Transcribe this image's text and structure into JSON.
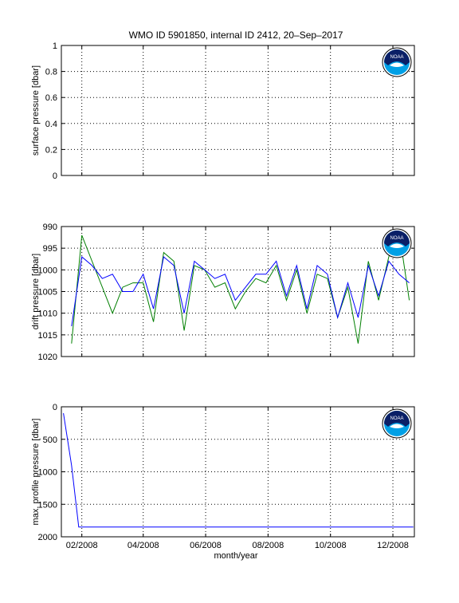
{
  "figure": {
    "title": "WMO ID 5901850, internal ID 2412, 20–Sep–2017",
    "xlabel": "month/year",
    "x_tick_labels": [
      "02/2008",
      "04/2008",
      "06/2008",
      "08/2008",
      "10/2008",
      "12/2008"
    ]
  },
  "logo": {
    "name": "noaa-logo",
    "text": "NOAA"
  },
  "colors": {
    "blue": "#0000ff",
    "green": "#007f00",
    "axes": "#000000"
  },
  "chart_data": [
    {
      "type": "line",
      "title": "WMO ID 5901850, internal ID 2412, 20–Sep–2017",
      "xlabel": "",
      "ylabel": "surface pressure [dbar]",
      "xlim": [
        "2008-01-12",
        "2008-12-22"
      ],
      "ylim": [
        0,
        1
      ],
      "y_reversed": false,
      "yticks": [
        0,
        0.2,
        0.4,
        0.6,
        0.8,
        1
      ],
      "ytick_labels": [
        "0",
        "0.2",
        "0.4",
        "0.6",
        "0.8",
        "1"
      ],
      "xticks": [
        "2008-02-01",
        "2008-04-01",
        "2008-06-01",
        "2008-08-01",
        "2008-10-01",
        "2008-12-01"
      ],
      "grid": true,
      "series": []
    },
    {
      "type": "line",
      "xlabel": "",
      "ylabel": "drift pressure [dbar]",
      "xlim": [
        "2008-01-12",
        "2008-12-22"
      ],
      "ylim": [
        990,
        1020
      ],
      "y_reversed": true,
      "yticks": [
        990,
        995,
        1000,
        1005,
        1010,
        1015,
        1020
      ],
      "ytick_labels": [
        "990",
        "995",
        "1000",
        "1005",
        "1010",
        "1015",
        "1020"
      ],
      "xticks": [
        "2008-02-01",
        "2008-04-01",
        "2008-06-01",
        "2008-08-01",
        "2008-10-01",
        "2008-12-01"
      ],
      "grid": true,
      "series": [
        {
          "color": "#007f00",
          "x": [
            "2008-01-22",
            "2008-02-01",
            "2008-02-11",
            "2008-02-21",
            "2008-03-02",
            "2008-03-12",
            "2008-03-22",
            "2008-04-01",
            "2008-04-11",
            "2008-04-21",
            "2008-05-01",
            "2008-05-11",
            "2008-05-21",
            "2008-05-31",
            "2008-06-10",
            "2008-06-20",
            "2008-06-30",
            "2008-07-10",
            "2008-07-20",
            "2008-07-30",
            "2008-08-09",
            "2008-08-19",
            "2008-08-29",
            "2008-09-08",
            "2008-09-18",
            "2008-09-28",
            "2008-10-08",
            "2008-10-18",
            "2008-10-28",
            "2008-11-07",
            "2008-11-17",
            "2008-11-27",
            "2008-12-07",
            "2008-12-17"
          ],
          "y": [
            1017,
            992,
            998,
            1004,
            1010,
            1004,
            1003,
            1003,
            1012,
            996,
            998,
            1014,
            999,
            1000,
            1004,
            1003,
            1009,
            1005,
            1002,
            1003,
            999,
            1007,
            1000,
            1010,
            1001,
            1002,
            1011,
            1004,
            1017,
            998,
            1007,
            997,
            991,
            1007
          ]
        },
        {
          "color": "#0000ff",
          "x": [
            "2008-01-22",
            "2008-02-01",
            "2008-02-11",
            "2008-02-21",
            "2008-03-02",
            "2008-03-12",
            "2008-03-22",
            "2008-04-01",
            "2008-04-11",
            "2008-04-21",
            "2008-05-01",
            "2008-05-11",
            "2008-05-21",
            "2008-05-31",
            "2008-06-10",
            "2008-06-20",
            "2008-06-30",
            "2008-07-10",
            "2008-07-20",
            "2008-07-30",
            "2008-08-09",
            "2008-08-19",
            "2008-08-29",
            "2008-09-08",
            "2008-09-18",
            "2008-09-28",
            "2008-10-08",
            "2008-10-18",
            "2008-10-28",
            "2008-11-07",
            "2008-11-17",
            "2008-11-27",
            "2008-12-07",
            "2008-12-17"
          ],
          "y": [
            1013,
            997,
            999,
            1002,
            1001,
            1005,
            1005,
            1001,
            1009,
            997,
            999,
            1010,
            998,
            1000,
            1002,
            1001,
            1007,
            1004,
            1001,
            1001,
            998,
            1006,
            999,
            1009,
            999,
            1001,
            1011,
            1003,
            1011,
            999,
            1006,
            998,
            1001,
            1003
          ]
        }
      ]
    },
    {
      "type": "line",
      "xlabel": "month/year",
      "ylabel": "max. profile pressure [dbar]",
      "xlim": [
        "2008-01-12",
        "2008-12-22"
      ],
      "ylim": [
        0,
        2000
      ],
      "y_reversed": true,
      "yticks": [
        0,
        500,
        1000,
        1500,
        2000
      ],
      "ytick_labels": [
        "0",
        "500",
        "1000",
        "1500",
        "2000"
      ],
      "xticks": [
        "2008-02-01",
        "2008-04-01",
        "2008-06-01",
        "2008-08-01",
        "2008-10-01",
        "2008-12-01"
      ],
      "grid": true,
      "series": [
        {
          "color": "#0000ff",
          "x": [
            "2008-01-14",
            "2008-01-22",
            "2008-01-29",
            "2008-02-08",
            "2008-03-10",
            "2008-04-10",
            "2008-05-10",
            "2008-06-10",
            "2008-07-10",
            "2008-08-10",
            "2008-09-10",
            "2008-10-10",
            "2008-11-10",
            "2008-12-10",
            "2008-12-21"
          ],
          "y": [
            100,
            900,
            1850,
            1850,
            1850,
            1850,
            1850,
            1850,
            1850,
            1850,
            1850,
            1850,
            1850,
            1850,
            1850
          ]
        }
      ]
    }
  ]
}
